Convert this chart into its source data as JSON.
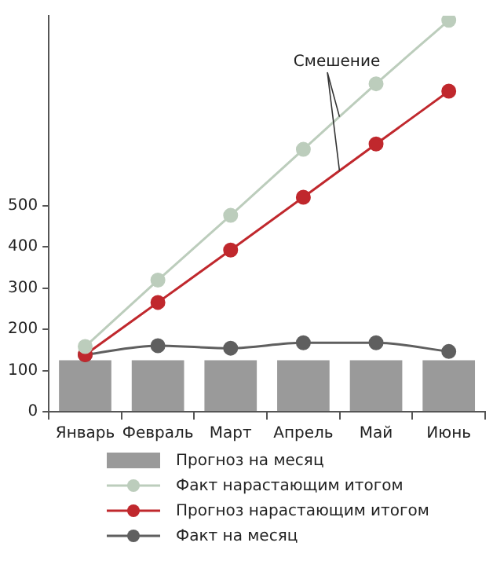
{
  "chart_data": {
    "type": "bar",
    "categories": [
      "Январь",
      "Февраль",
      "Март",
      "Апрель",
      "Май",
      "Июнь"
    ],
    "series": [
      {
        "name": "Прогноз на месяц",
        "color": "#9a9a9a",
        "values": [
          125,
          125,
          125,
          125,
          125,
          125
        ]
      },
      {
        "name": "Факт нарастающим итогом",
        "type": "line",
        "color": "#bccdbc",
        "values": [
          158,
          319,
          476,
          636,
          795,
          949
        ]
      },
      {
        "name": "Прогноз нарастающим итогом",
        "type": "line",
        "color": "#c0282d",
        "values": [
          138,
          265,
          392,
          520,
          649,
          777
        ]
      },
      {
        "name": "Факт на месяц",
        "type": "line",
        "color": "#5f5f5f",
        "values": [
          138,
          160,
          154,
          167,
          167,
          146
        ]
      }
    ],
    "ylim": [
      0,
      960
    ],
    "yticks": [
      0,
      100,
      200,
      300,
      400,
      500
    ],
    "grid": false,
    "legend": "bottom",
    "marker": "circle",
    "line_style": "solid",
    "annotations": [
      {
        "text": "Смешение",
        "y": 715
      }
    ]
  }
}
